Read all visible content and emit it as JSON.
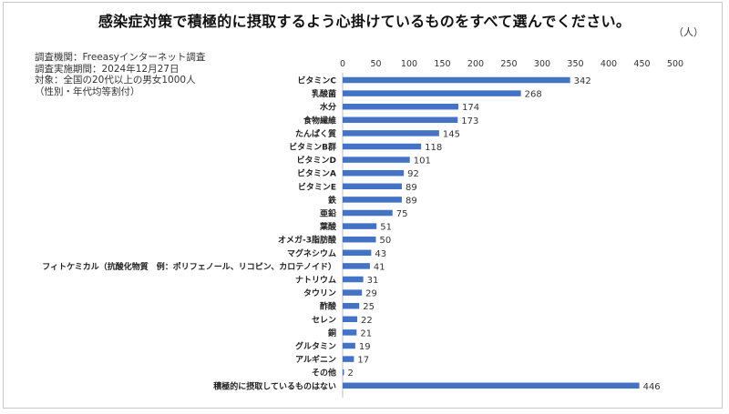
{
  "chart_data": {
    "type": "bar",
    "orientation": "horizontal",
    "title": "感染症対策で積極的に摂取するよう心掛けているものをすべて選んでください。",
    "unit": "（人）",
    "xlim": [
      0,
      500
    ],
    "x_ticks": [
      0,
      50,
      100,
      150,
      200,
      250,
      300,
      350,
      400,
      450,
      500
    ],
    "bar_color": "#4472C4",
    "grid": false,
    "categories": [
      "ビタミンC",
      "乳酸菌",
      "水分",
      "食物繊維",
      "たんぱく質",
      "ビタミンB群",
      "ビタミンD",
      "ビタミンA",
      "ビタミンE",
      "鉄",
      "亜鉛",
      "葉酸",
      "オメガ-3脂肪酸",
      "マグネシウム",
      "フィトケミカル（抗酸化物質　例：ポリフェノール、リコピン、カロテノイド）",
      "ナトリウム",
      "タウリン",
      "酢酸",
      "セレン",
      "銅",
      "グルタミン",
      "アルギニン",
      "その他",
      "積極的に摂取しているものはない"
    ],
    "values": [
      342,
      268,
      174,
      173,
      145,
      118,
      101,
      92,
      89,
      89,
      75,
      51,
      50,
      43,
      41,
      31,
      29,
      25,
      22,
      21,
      19,
      17,
      2,
      446
    ]
  },
  "survey_info": [
    "調査機関：Freeasyインターネット調査",
    "調査実施期間：2024年12月27日",
    "対象：全国の20代以上の男女1000人",
    "（性別・年代均等割付）"
  ]
}
